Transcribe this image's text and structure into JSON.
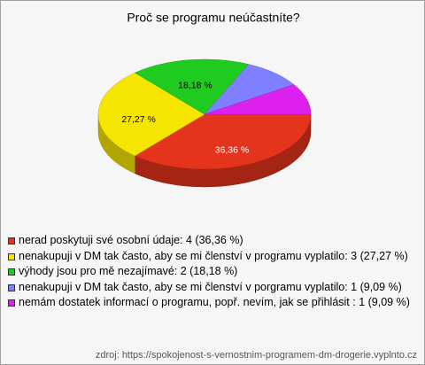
{
  "chart_data": {
    "type": "pie",
    "title": "Proč se programu neúčastníte?",
    "categories": [
      "nerad poskytuji své osobní údaje: 4 (36,36 %)",
      "nenakupuji v DM tak často, aby se mi členství v programu vyplatilo: 3 (27,27 %)",
      "výhody jsou pro mě nezajímavé: 2 (18,18 %)",
      "nenakupuji v DM tak často, aby se mi členství v porgramu vyplatilo: 1 (9,09 %)",
      "nemám dostatek informací o programu, popř. nevím, jak se přihlásit : 1 (9,09 %)"
    ],
    "values": [
      36.36,
      27.27,
      18.18,
      9.09,
      9.09
    ],
    "value_labels": [
      "36,36 %",
      "27,27 %",
      "18,18 %",
      null,
      null
    ],
    "colors": [
      "#e5341c",
      "#f6e500",
      "#1ecb1e",
      "#7f80ff",
      "#de20ee"
    ],
    "source": "zdroj: https://spokojenost-s-vernostnim-programem-dm-drogerie.vyplnto.cz"
  }
}
